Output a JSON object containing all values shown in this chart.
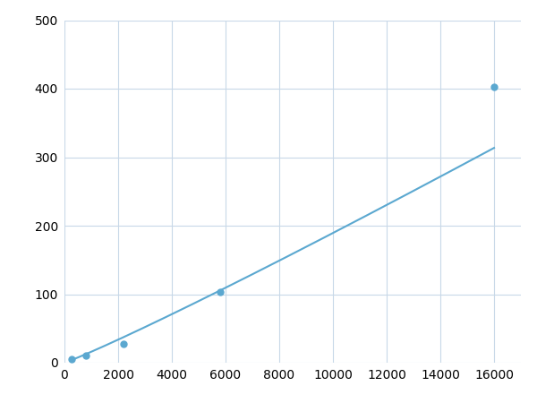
{
  "x": [
    250,
    800,
    2200,
    5800,
    16000
  ],
  "y": [
    5,
    10,
    27,
    103,
    403
  ],
  "line_color": "#5ba8d0",
  "marker_color": "#5ba8d0",
  "marker_size": 5,
  "line_width": 1.5,
  "xlim": [
    0,
    17000
  ],
  "ylim": [
    0,
    500
  ],
  "xticks": [
    0,
    2000,
    4000,
    6000,
    8000,
    10000,
    12000,
    14000,
    16000
  ],
  "yticks": [
    0,
    100,
    200,
    300,
    400,
    500
  ],
  "grid_color": "#c8d8e8",
  "background_color": "#ffffff",
  "tick_fontsize": 10,
  "figsize": [
    6.0,
    4.5
  ],
  "dpi": 100
}
